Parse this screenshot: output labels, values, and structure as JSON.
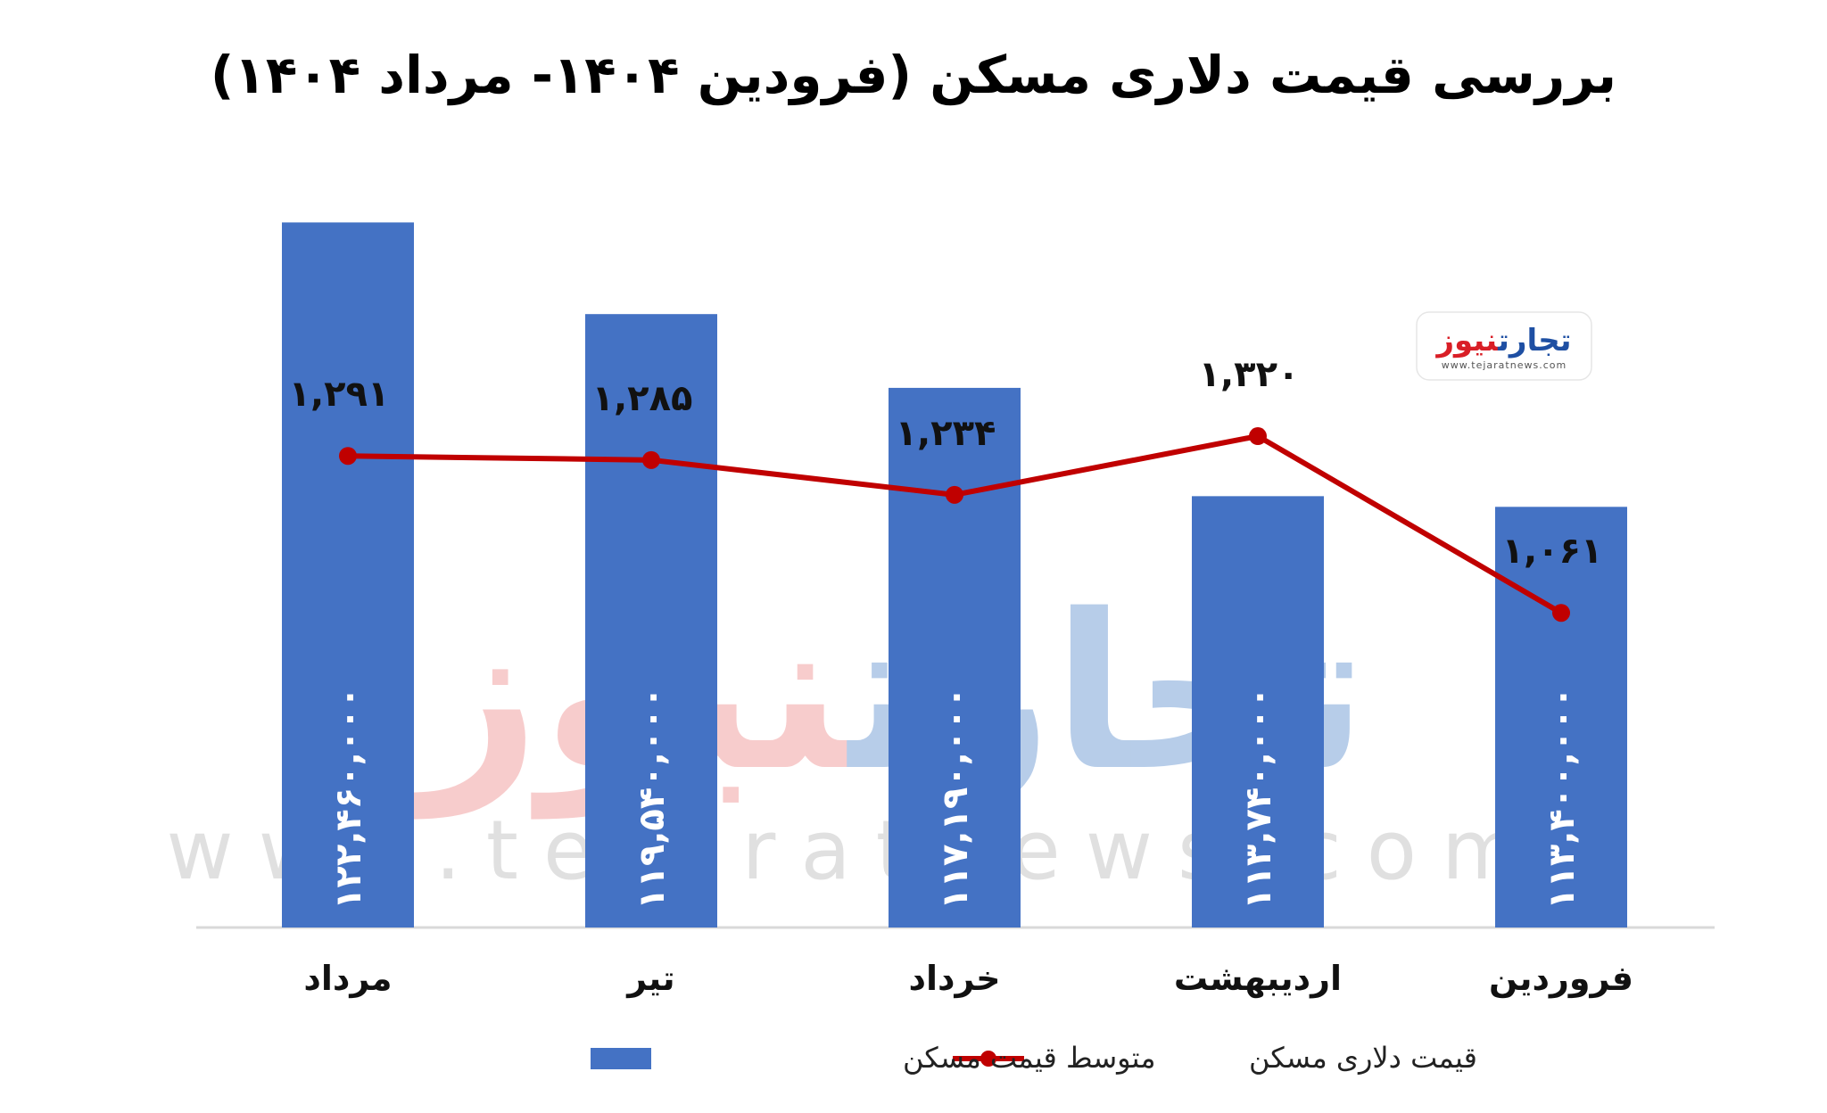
{
  "title": "بررسی قیمت دلاری مسکن (فرودین ۱۴۰۴- مرداد ۱۴۰۴)",
  "watermark": {
    "logo_part1": "تجارت",
    "logo_part2": "نیوز",
    "url": "www.tejaratnews.com"
  },
  "badge": {
    "part1": "تجارت",
    "part2": "نیوز",
    "url": "www.tejaratnews.com"
  },
  "colors": {
    "bar": "#4472C4",
    "line": "#C00000",
    "baseline": "#D9D9D9",
    "watermark_blue": "#7da6d8",
    "watermark_red": "#f2a3a3",
    "badge_red": "#d91e26",
    "badge_blue": "#1e4fa3"
  },
  "chart_data": {
    "type": "bar",
    "categories": [
      "فروردین",
      "اردیبهشت",
      "خرداد",
      "تیر",
      "مرداد"
    ],
    "series": [
      {
        "name": "متوسط قیمت مسکن",
        "type": "bar",
        "values": [
          113400000,
          113740000,
          117190000,
          119540000,
          122460000
        ],
        "labels": [
          "۱۱۳,۴۰۰,۰۰۰",
          "۱۱۳,۷۴۰,۰۰۰",
          "۱۱۷,۱۹۰,۰۰۰",
          "۱۱۹,۵۴۰,۰۰۰",
          "۱۲۲,۴۶۰,۰۰۰"
        ]
      },
      {
        "name": "قیمت دلاری مسکن",
        "type": "line",
        "values": [
          1061,
          1320,
          1234,
          1285,
          1291
        ],
        "labels": [
          "۱,۰۶۱",
          "۱,۳۲۰",
          "۱,۲۳۴",
          "۱,۲۸۵",
          "۱,۲۹۱"
        ]
      }
    ],
    "bar_axis_range": [
      100000000,
      125000000
    ],
    "line_axis_range": [
      600,
      1750
    ],
    "grid": false,
    "legend_position": "bottom"
  }
}
